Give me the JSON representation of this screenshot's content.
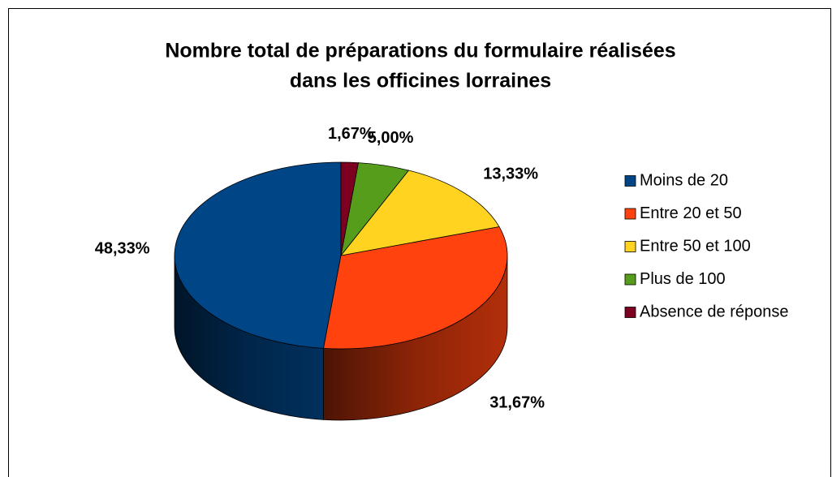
{
  "chart_data": {
    "type": "pie3d",
    "title": [
      "Nombre total de préparations du formulaire réalisées",
      "dans les officines lorraines"
    ],
    "categories": [
      "Moins de 20",
      "Entre 20 et 50",
      "Entre 50 et 100",
      "Plus de 100",
      "Absence de réponse"
    ],
    "values": [
      48.33,
      31.67,
      13.33,
      5.0,
      1.67
    ],
    "value_labels": [
      "48,33%",
      "31,67%",
      "13,33%",
      "5,00%",
      "1,67%"
    ],
    "colors": [
      "#004586",
      "#ff420e",
      "#ffd320",
      "#579d1c",
      "#7e0021"
    ],
    "legend": "right"
  }
}
